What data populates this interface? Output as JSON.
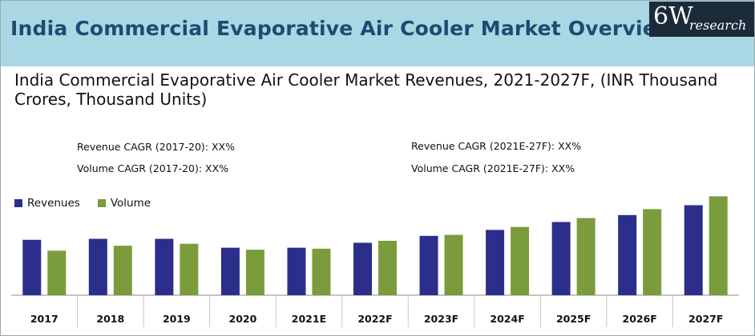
{
  "header": {
    "title": "India Commercial Evaporative Air Cooler Market Overview",
    "logo_main": "6W",
    "logo_sub": "research"
  },
  "chart_data": {
    "type": "bar",
    "title": "India Commercial Evaporative Air Cooler Market Revenues, 2021-2027F, (INR Thousand Crores, Thousand Units)",
    "categories": [
      "2017",
      "2018",
      "2019",
      "2020",
      "2021E",
      "2022F",
      "2023F",
      "2024F",
      "2025F",
      "2026F",
      "2027F"
    ],
    "series": [
      {
        "name": "Revenues",
        "color": "#2b2e8a",
        "values": [
          56,
          57,
          57,
          48,
          48,
          53,
          60,
          66,
          74,
          81,
          91
        ]
      },
      {
        "name": "Volume",
        "color": "#7a9c3c",
        "values": [
          45,
          50,
          52,
          46,
          47,
          55,
          61,
          69,
          78,
          87,
          100
        ]
      }
    ],
    "ylim": [
      0,
      110
    ],
    "xlabel": "",
    "ylabel": "",
    "annotations": {
      "revenue_cagr_hist": "Revenue CAGR (2017-20): XX%",
      "volume_cagr_hist": "Volume CAGR (2017-20): XX%",
      "revenue_cagr_fc": "Revenue CAGR (2021E-27F): XX%",
      "volume_cagr_fc": "Volume CAGR (2021E-27F): XX%"
    }
  }
}
